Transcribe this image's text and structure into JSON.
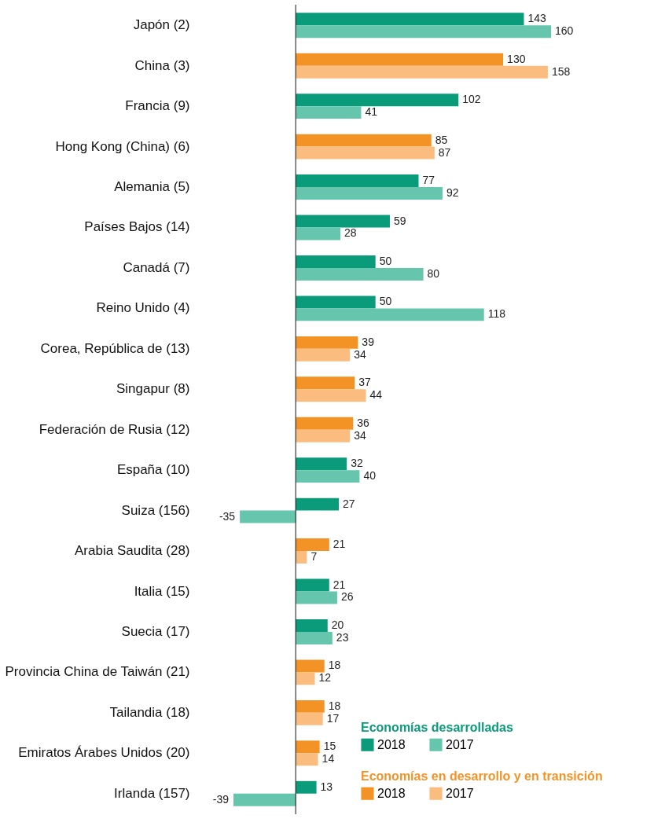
{
  "chart_data": {
    "type": "bar",
    "orientation": "horizontal",
    "data_labels": true,
    "legend": "bottom right",
    "grid": false,
    "categories": [
      "Japón (2)",
      "China (3)",
      "Francia (9)",
      "Hong Kong (China) (6)",
      "Alemania (5)",
      "Países Bajos (14)",
      "Canadá (7)",
      "Reino Unido (4)",
      "Corea, República de (13)",
      "Singapur (8)",
      "Federación de Rusia (12)",
      "España (10)",
      "Suiza (156)",
      "Arabia Saudita (28)",
      "Italia (15)",
      "Suecia (17)",
      "Provincia China de Taiwán (21)",
      "Tailandia (18)",
      "Emiratos Árabes Unidos (20)",
      "Irlanda (157)"
    ],
    "series": [
      {
        "name": "2018",
        "color": "#0a9b7a",
        "values": [
          143,
          null,
          102,
          null,
          77,
          59,
          50,
          50,
          null,
          null,
          null,
          32,
          27,
          null,
          21,
          20,
          null,
          null,
          null,
          13
        ]
      },
      {
        "name": "2017",
        "color": "#66c6ad",
        "values": [
          160,
          null,
          41,
          null,
          92,
          28,
          80,
          118,
          null,
          null,
          null,
          40,
          -35,
          null,
          26,
          23,
          null,
          null,
          null,
          -39
        ]
      },
      {
        "name": "2018",
        "color": "#f39325",
        "values": [
          null,
          130,
          null,
          85,
          null,
          null,
          null,
          null,
          39,
          37,
          36,
          null,
          null,
          21,
          null,
          null,
          18,
          18,
          15,
          null
        ]
      },
      {
        "name": "2017",
        "color": "#fbbd7f",
        "values": [
          null,
          158,
          null,
          87,
          null,
          null,
          null,
          null,
          34,
          44,
          34,
          null,
          null,
          7,
          null,
          null,
          12,
          17,
          14,
          null
        ]
      }
    ],
    "annotations": [
      "Economías desarrolladas",
      "Economías en desarrollo y en transición"
    ]
  }
}
